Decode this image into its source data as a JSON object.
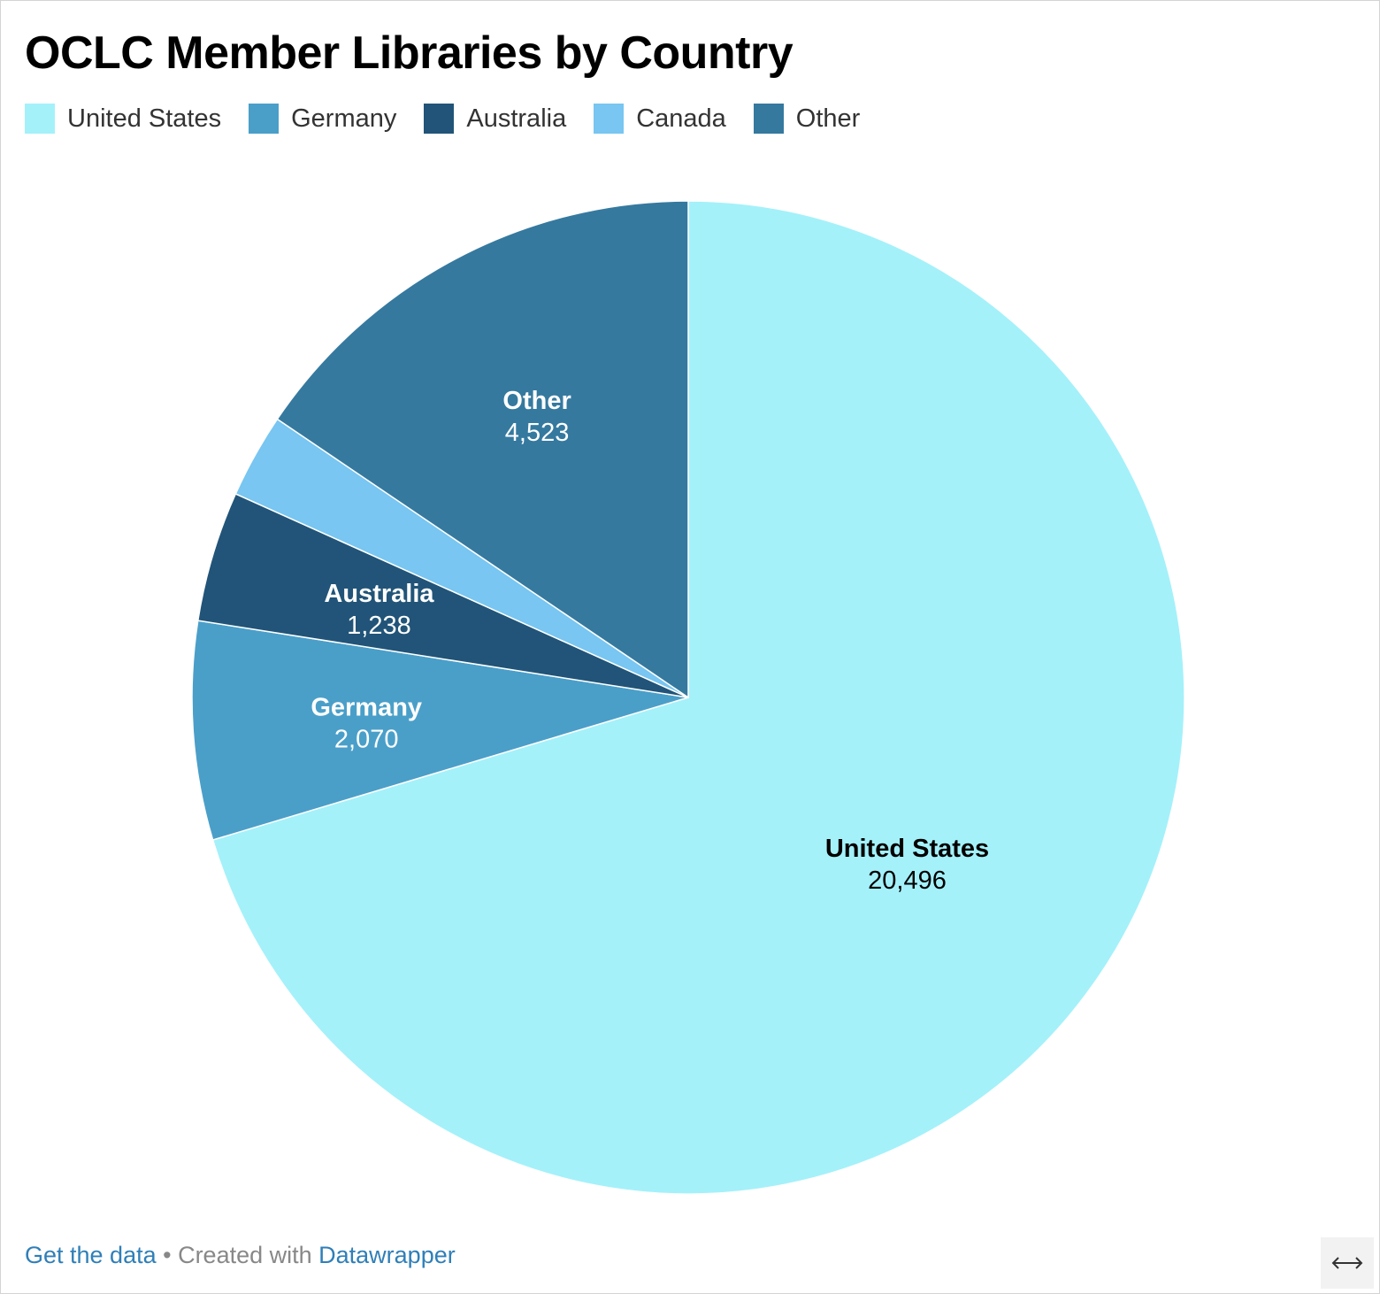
{
  "title": "OCLC Member Libraries by Country",
  "footer": {
    "get_data_label": "Get the data",
    "separator": " • Created with ",
    "datawrapper_label": "Datawrapper"
  },
  "resize_icon": "horizontal-arrows-icon",
  "colors": {
    "United States": "#a4f1fa",
    "Germany": "#4a9fc9",
    "Australia": "#215478",
    "Canada": "#78c6f1",
    "Other": "#35799f",
    "dark_label": "#000000",
    "light_label": "#ffffff"
  },
  "chart_data": {
    "type": "pie",
    "title": "OCLC Member Libraries by Country",
    "legend_position": "top-left",
    "categories": [
      "United States",
      "Germany",
      "Australia",
      "Canada",
      "Other"
    ],
    "values": [
      20496,
      2070,
      1238,
      800,
      4523
    ],
    "value_labels": [
      "20,496",
      "2,070",
      "1,238",
      "",
      "4,523"
    ],
    "start_angle_deg": 0,
    "direction": "clockwise"
  }
}
